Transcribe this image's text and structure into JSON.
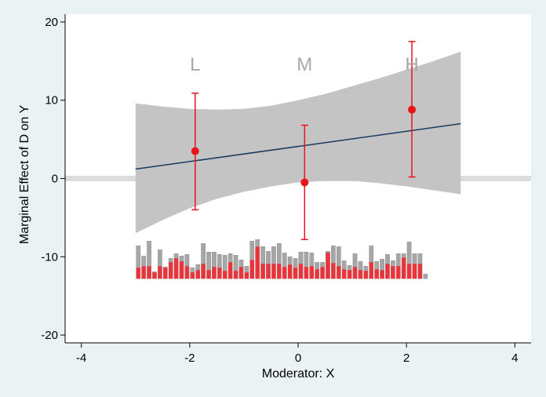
{
  "chart_data": {
    "type": "marginal-effects",
    "title": "",
    "xlabel": "Moderator: X",
    "ylabel": "Marginal Effect of D on Y",
    "xlim": [
      -4.3,
      4.3
    ],
    "ylim": [
      -21,
      21
    ],
    "xticks": [
      -4,
      -2,
      0,
      2,
      4
    ],
    "yticks": [
      -20,
      -10,
      0,
      10,
      20
    ],
    "reference_line_y": 0,
    "linear_fit": {
      "x": [
        -3,
        3
      ],
      "y": [
        1.2,
        7.0
      ]
    },
    "confidence_band": {
      "x": [
        -3.0,
        -2.5,
        -2.0,
        -1.5,
        -1.0,
        -0.5,
        0.0,
        0.5,
        1.0,
        1.5,
        2.0,
        2.5,
        3.0
      ],
      "upper": [
        9.6,
        9.2,
        8.9,
        8.8,
        8.9,
        9.3,
        10.0,
        10.8,
        11.8,
        12.8,
        13.9,
        15.0,
        16.2
      ],
      "lower": [
        -7.0,
        -5.3,
        -3.8,
        -2.6,
        -1.7,
        -1.0,
        -0.5,
        -0.3,
        -0.3,
        -0.6,
        -1.0,
        -1.5,
        -2.0
      ]
    },
    "bin_estimates": [
      {
        "label": "L",
        "x": -1.9,
        "estimate": 3.5,
        "ci_low": -4.0,
        "ci_high": 10.9
      },
      {
        "label": "M",
        "x": 0.12,
        "estimate": -0.5,
        "ci_low": -7.8,
        "ci_high": 6.8
      },
      {
        "label": "H",
        "x": 2.1,
        "estimate": 8.8,
        "ci_low": 0.2,
        "ci_high": 17.5
      }
    ],
    "histogram": {
      "baseline_y": -12.8,
      "bin_width": 0.1,
      "start_x": -3.0,
      "total": [
        4.2,
        2.9,
        4.8,
        0.9,
        3.7,
        1.5,
        2.6,
        3.2,
        2.9,
        3.1,
        1.4,
        1.8,
        4.5,
        3.4,
        3.4,
        3.1,
        3.0,
        3.2,
        3.0,
        2.4,
        1.6,
        4.8,
        5.0,
        4.1,
        3.5,
        4.1,
        4.5,
        3.3,
        2.8,
        2.6,
        3.4,
        3.4,
        3.3,
        2.1,
        2.1,
        3.5,
        4.2,
        4.1,
        2.3,
        1.7,
        3.2,
        2.2,
        1.6,
        4.2,
        2.2,
        2.5,
        3.1,
        2.3,
        3.2,
        3.2,
        4.7,
        3.2,
        3.2,
        0.6
      ],
      "treated": [
        1.4,
        1.6,
        1.6,
        0.8,
        1.6,
        1.4,
        2.1,
        2.6,
        2.2,
        1.6,
        0.8,
        1.1,
        1.9,
        1.1,
        1.5,
        1.4,
        1.0,
        2.1,
        1.0,
        1.5,
        0.8,
        2.4,
        4.1,
        1.9,
        1.9,
        1.9,
        1.9,
        1.5,
        1.8,
        1.4,
        1.9,
        1.5,
        1.6,
        1.2,
        1.5,
        3.3,
        2.0,
        1.6,
        1.2,
        1.1,
        1.5,
        1.1,
        1.0,
        2.1,
        1.2,
        1.1,
        1.9,
        1.6,
        1.6,
        2.7,
        1.9,
        1.9,
        1.9,
        0.0
      ]
    },
    "colors": {
      "background": "#eaf2f3",
      "plot_area": "#ffffff",
      "band": "#c4c4c4",
      "zero_line": "#dcdcdc",
      "fit_line": "#1a3a5c",
      "estimate": "#e8141a",
      "hist_total": "#a6a6a6",
      "hist_treated": "#e8343a",
      "bin_label": "#a8a8a8"
    }
  }
}
